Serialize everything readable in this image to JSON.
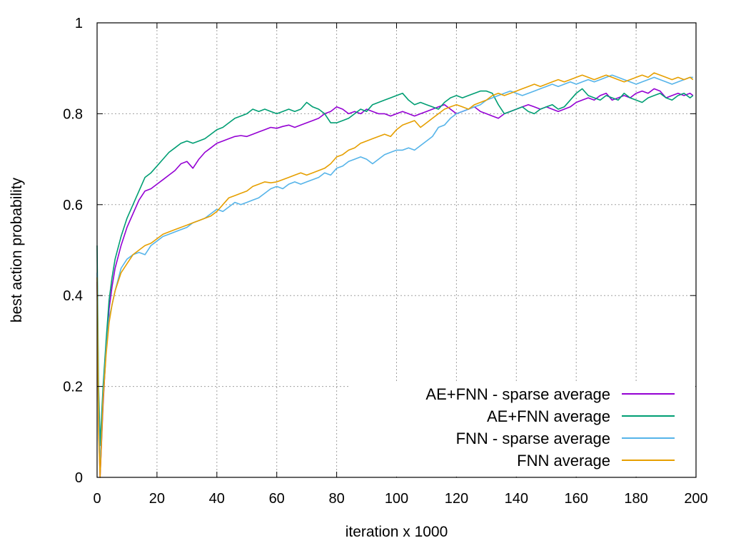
{
  "chart_data": {
    "type": "line",
    "title": "",
    "xlabel": "iteration x 1000",
    "ylabel": "best action probability",
    "xlim": [
      0,
      200
    ],
    "ylim": [
      0,
      1
    ],
    "xticks": [
      0,
      20,
      40,
      60,
      80,
      100,
      120,
      140,
      160,
      180,
      200
    ],
    "yticks": [
      0,
      0.2,
      0.4,
      0.6,
      0.8,
      1
    ],
    "ytick_labels": [
      "0",
      "0.2",
      "0.4",
      "0.6",
      "0.8",
      "1"
    ],
    "grid": true,
    "legend_position": "bottom-right",
    "series": [
      {
        "name": "AE+FNN - sparse average",
        "color": "#9400d3",
        "x": [
          0,
          0.5,
          1,
          2,
          3,
          4,
          5,
          6,
          8,
          10,
          12,
          14,
          16,
          18,
          20,
          22,
          24,
          26,
          28,
          30,
          32,
          34,
          36,
          38,
          40,
          42,
          44,
          46,
          48,
          50,
          52,
          54,
          56,
          58,
          60,
          62,
          64,
          66,
          68,
          70,
          72,
          74,
          76,
          78,
          80,
          82,
          84,
          86,
          88,
          90,
          92,
          94,
          96,
          98,
          100,
          102,
          104,
          106,
          108,
          110,
          112,
          114,
          116,
          118,
          120,
          122,
          124,
          126,
          128,
          130,
          132,
          134,
          136,
          138,
          140,
          142,
          144,
          146,
          148,
          150,
          152,
          154,
          156,
          158,
          160,
          162,
          164,
          166,
          168,
          170,
          172,
          174,
          176,
          178,
          180,
          182,
          184,
          186,
          188,
          190,
          192,
          194,
          196,
          198,
          199
        ],
        "y": [
          0.43,
          0.12,
          0.0,
          0.16,
          0.28,
          0.37,
          0.42,
          0.46,
          0.51,
          0.55,
          0.58,
          0.61,
          0.63,
          0.635,
          0.645,
          0.655,
          0.665,
          0.675,
          0.69,
          0.695,
          0.68,
          0.7,
          0.715,
          0.725,
          0.735,
          0.74,
          0.745,
          0.75,
          0.752,
          0.75,
          0.755,
          0.76,
          0.765,
          0.77,
          0.768,
          0.772,
          0.775,
          0.77,
          0.775,
          0.78,
          0.785,
          0.79,
          0.8,
          0.805,
          0.815,
          0.81,
          0.8,
          0.805,
          0.8,
          0.81,
          0.805,
          0.8,
          0.8,
          0.795,
          0.8,
          0.805,
          0.8,
          0.795,
          0.8,
          0.805,
          0.81,
          0.815,
          0.82,
          0.81,
          0.8,
          0.805,
          0.81,
          0.815,
          0.805,
          0.8,
          0.795,
          0.79,
          0.8,
          0.805,
          0.81,
          0.815,
          0.82,
          0.815,
          0.81,
          0.815,
          0.81,
          0.805,
          0.81,
          0.815,
          0.825,
          0.83,
          0.835,
          0.83,
          0.84,
          0.845,
          0.83,
          0.835,
          0.84,
          0.835,
          0.845,
          0.85,
          0.845,
          0.855,
          0.85,
          0.835,
          0.84,
          0.845,
          0.84,
          0.845,
          0.84
        ]
      },
      {
        "name": "AE+FNN average",
        "color": "#009e73",
        "x": [
          0,
          0.5,
          1,
          2,
          3,
          4,
          5,
          6,
          8,
          10,
          12,
          14,
          16,
          18,
          20,
          22,
          24,
          26,
          28,
          30,
          32,
          34,
          36,
          38,
          40,
          42,
          44,
          46,
          48,
          50,
          52,
          54,
          56,
          58,
          60,
          62,
          64,
          66,
          68,
          70,
          72,
          74,
          76,
          78,
          80,
          82,
          84,
          86,
          88,
          90,
          92,
          94,
          96,
          98,
          100,
          102,
          104,
          106,
          108,
          110,
          112,
          114,
          116,
          118,
          120,
          122,
          124,
          126,
          128,
          130,
          132,
          134,
          136,
          138,
          140,
          142,
          144,
          146,
          148,
          150,
          152,
          154,
          156,
          158,
          160,
          162,
          164,
          166,
          168,
          170,
          172,
          174,
          176,
          178,
          180,
          182,
          184,
          186,
          188,
          190,
          192,
          194,
          196,
          198,
          199
        ],
        "y": [
          0.51,
          0.2,
          0.07,
          0.2,
          0.3,
          0.39,
          0.44,
          0.48,
          0.53,
          0.57,
          0.6,
          0.63,
          0.66,
          0.67,
          0.685,
          0.7,
          0.715,
          0.725,
          0.735,
          0.74,
          0.735,
          0.74,
          0.745,
          0.755,
          0.765,
          0.77,
          0.78,
          0.79,
          0.795,
          0.8,
          0.81,
          0.805,
          0.81,
          0.805,
          0.8,
          0.805,
          0.81,
          0.805,
          0.81,
          0.825,
          0.815,
          0.81,
          0.8,
          0.78,
          0.78,
          0.785,
          0.79,
          0.8,
          0.81,
          0.805,
          0.82,
          0.825,
          0.83,
          0.835,
          0.84,
          0.845,
          0.83,
          0.82,
          0.825,
          0.82,
          0.815,
          0.81,
          0.825,
          0.835,
          0.84,
          0.835,
          0.84,
          0.845,
          0.85,
          0.85,
          0.845,
          0.82,
          0.8,
          0.805,
          0.81,
          0.815,
          0.805,
          0.8,
          0.81,
          0.815,
          0.82,
          0.81,
          0.815,
          0.83,
          0.845,
          0.855,
          0.84,
          0.835,
          0.83,
          0.84,
          0.835,
          0.83,
          0.845,
          0.835,
          0.83,
          0.825,
          0.835,
          0.84,
          0.845,
          0.835,
          0.83,
          0.84,
          0.845,
          0.835,
          0.84
        ]
      },
      {
        "name": "FNN - sparse average",
        "color": "#56b4e9",
        "x": [
          0,
          0.5,
          1,
          2,
          3,
          4,
          5,
          6,
          8,
          10,
          12,
          14,
          16,
          18,
          20,
          22,
          24,
          26,
          28,
          30,
          32,
          34,
          36,
          38,
          40,
          42,
          44,
          46,
          48,
          50,
          52,
          54,
          56,
          58,
          60,
          62,
          64,
          66,
          68,
          70,
          72,
          74,
          76,
          78,
          80,
          82,
          84,
          86,
          88,
          90,
          92,
          94,
          96,
          98,
          100,
          102,
          104,
          106,
          108,
          110,
          112,
          114,
          116,
          118,
          120,
          122,
          124,
          126,
          128,
          130,
          132,
          134,
          136,
          138,
          140,
          142,
          144,
          146,
          148,
          150,
          152,
          154,
          156,
          158,
          160,
          162,
          164,
          166,
          168,
          170,
          172,
          174,
          176,
          178,
          180,
          182,
          184,
          186,
          188,
          190,
          192,
          194,
          196,
          198,
          199
        ],
        "y": [
          0.45,
          0.15,
          0.02,
          0.18,
          0.28,
          0.35,
          0.38,
          0.41,
          0.46,
          0.48,
          0.49,
          0.495,
          0.49,
          0.51,
          0.52,
          0.53,
          0.535,
          0.54,
          0.545,
          0.55,
          0.56,
          0.565,
          0.57,
          0.58,
          0.59,
          0.585,
          0.595,
          0.605,
          0.6,
          0.605,
          0.61,
          0.615,
          0.625,
          0.635,
          0.64,
          0.635,
          0.645,
          0.65,
          0.645,
          0.65,
          0.655,
          0.66,
          0.67,
          0.665,
          0.68,
          0.685,
          0.695,
          0.7,
          0.705,
          0.7,
          0.69,
          0.7,
          0.71,
          0.715,
          0.72,
          0.72,
          0.725,
          0.72,
          0.73,
          0.74,
          0.75,
          0.77,
          0.775,
          0.79,
          0.8,
          0.805,
          0.81,
          0.815,
          0.82,
          0.83,
          0.835,
          0.84,
          0.845,
          0.85,
          0.845,
          0.84,
          0.845,
          0.85,
          0.855,
          0.86,
          0.865,
          0.86,
          0.865,
          0.87,
          0.865,
          0.87,
          0.875,
          0.87,
          0.875,
          0.88,
          0.885,
          0.88,
          0.875,
          0.87,
          0.865,
          0.87,
          0.875,
          0.88,
          0.875,
          0.87,
          0.865,
          0.87,
          0.875,
          0.88,
          0.88
        ]
      },
      {
        "name": "FNN average",
        "color": "#e69f00",
        "x": [
          0,
          0.5,
          1,
          2,
          3,
          4,
          5,
          6,
          8,
          10,
          12,
          14,
          16,
          18,
          20,
          22,
          24,
          26,
          28,
          30,
          32,
          34,
          36,
          38,
          40,
          42,
          44,
          46,
          48,
          50,
          52,
          54,
          56,
          58,
          60,
          62,
          64,
          66,
          68,
          70,
          72,
          74,
          76,
          78,
          80,
          82,
          84,
          86,
          88,
          90,
          92,
          94,
          96,
          98,
          100,
          102,
          104,
          106,
          108,
          110,
          112,
          114,
          116,
          118,
          120,
          122,
          124,
          126,
          128,
          130,
          132,
          134,
          136,
          138,
          140,
          142,
          144,
          146,
          148,
          150,
          152,
          154,
          156,
          158,
          160,
          162,
          164,
          166,
          168,
          170,
          172,
          174,
          176,
          178,
          180,
          182,
          184,
          186,
          188,
          190,
          192,
          194,
          196,
          198,
          199
        ],
        "y": [
          0.44,
          0.1,
          0.0,
          0.17,
          0.27,
          0.34,
          0.38,
          0.41,
          0.45,
          0.47,
          0.49,
          0.5,
          0.51,
          0.515,
          0.525,
          0.535,
          0.54,
          0.545,
          0.55,
          0.555,
          0.56,
          0.565,
          0.57,
          0.575,
          0.585,
          0.6,
          0.615,
          0.62,
          0.625,
          0.63,
          0.64,
          0.645,
          0.65,
          0.648,
          0.65,
          0.655,
          0.66,
          0.665,
          0.67,
          0.665,
          0.67,
          0.675,
          0.68,
          0.69,
          0.705,
          0.71,
          0.72,
          0.725,
          0.735,
          0.74,
          0.745,
          0.75,
          0.755,
          0.75,
          0.765,
          0.775,
          0.78,
          0.785,
          0.77,
          0.78,
          0.79,
          0.8,
          0.81,
          0.815,
          0.82,
          0.815,
          0.81,
          0.82,
          0.825,
          0.83,
          0.84,
          0.845,
          0.84,
          0.845,
          0.85,
          0.855,
          0.86,
          0.865,
          0.86,
          0.865,
          0.87,
          0.875,
          0.87,
          0.875,
          0.88,
          0.885,
          0.88,
          0.875,
          0.88,
          0.885,
          0.88,
          0.875,
          0.87,
          0.875,
          0.88,
          0.885,
          0.88,
          0.89,
          0.885,
          0.88,
          0.875,
          0.88,
          0.875,
          0.88,
          0.875
        ]
      }
    ]
  }
}
